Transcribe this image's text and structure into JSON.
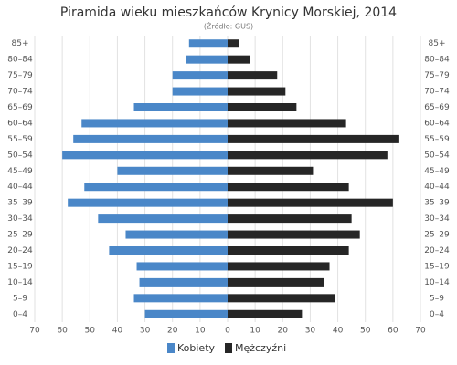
{
  "chart_data": {
    "type": "pyramid",
    "title": "Piramida wieku mieszkańców Krynicy Morskiej, 2014",
    "subtitle": "(Źródło: GUS)",
    "categories": [
      "85+",
      "80–84",
      "75–79",
      "70–74",
      "65–69",
      "60–64",
      "55–59",
      "50–54",
      "45–49",
      "40–44",
      "35–39",
      "30–34",
      "25–29",
      "20–24",
      "15–19",
      "10–14",
      "5–9",
      "0–4"
    ],
    "series": [
      {
        "name": "Kobiety",
        "color": "#4a87c8",
        "values": [
          14,
          15,
          20,
          20,
          34,
          53,
          56,
          60,
          40,
          52,
          58,
          47,
          37,
          43,
          33,
          32,
          34,
          30
        ]
      },
      {
        "name": "Mężczyźni",
        "color": "#262626",
        "values": [
          4,
          8,
          18,
          21,
          25,
          43,
          62,
          58,
          31,
          44,
          60,
          45,
          48,
          44,
          37,
          35,
          39,
          27
        ]
      }
    ],
    "xlim": [
      0,
      70
    ],
    "xticks": [
      0,
      10,
      20,
      30,
      40,
      50,
      60,
      70
    ],
    "grid": true
  }
}
